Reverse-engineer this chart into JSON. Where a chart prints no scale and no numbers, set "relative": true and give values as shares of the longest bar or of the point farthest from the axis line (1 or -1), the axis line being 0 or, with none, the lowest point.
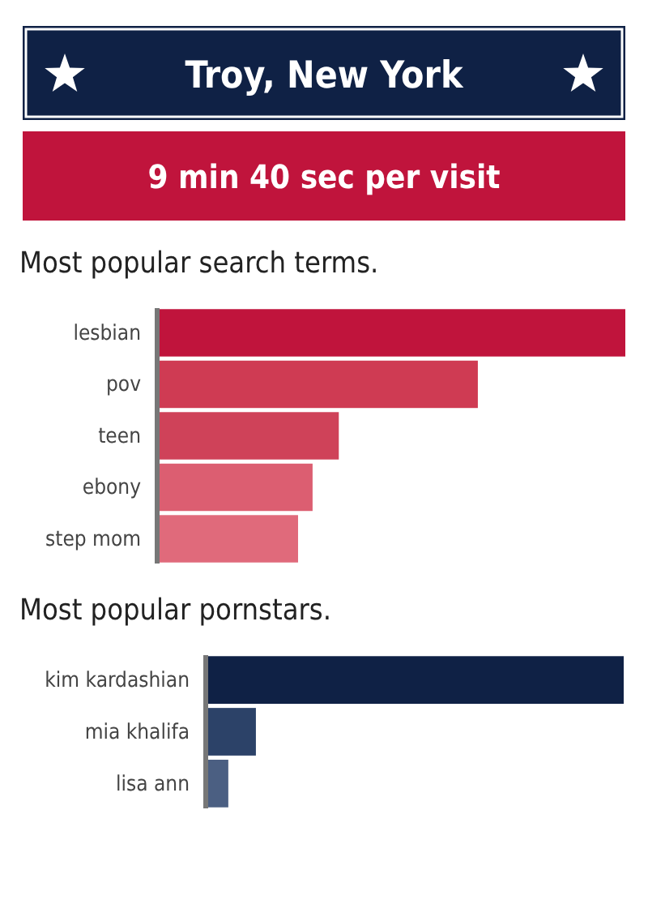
{
  "chart_data": [
    {
      "type": "bar",
      "orientation": "horizontal",
      "relative": true,
      "title": "Troy, New York",
      "subtitle": "9 min 40 sec per visit",
      "xlabel": "Most popular search terms.",
      "categories": [
        "lesbian",
        "pov",
        "teen",
        "ebony",
        "step mom"
      ],
      "values": [
        1,
        0.685,
        0.388,
        0.332,
        0.301
      ],
      "colors": [
        "#c0143c",
        "#cf3b53",
        "#cf4259",
        "#dc5e71",
        "#e06a7b"
      ]
    },
    {
      "type": "bar",
      "orientation": "horizontal",
      "relative": true,
      "xlabel": "Most popular pornstars.",
      "categories": [
        "kim kardashian",
        "mia khalifa",
        "lisa ann"
      ],
      "values": [
        1,
        0.12,
        0.054
      ],
      "colors": [
        "#0f2145",
        "#2c4268",
        "#4b5f82"
      ]
    }
  ]
}
